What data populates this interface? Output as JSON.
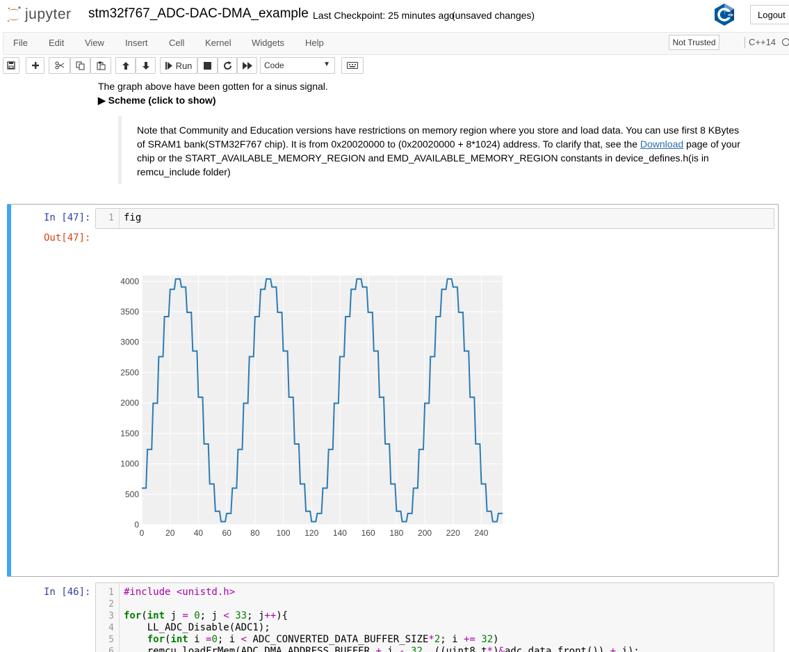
{
  "header": {
    "logo_text": "jupyter",
    "notebook_name": "stm32f767_ADC-DAC-DMA_example",
    "checkpoint": "Last Checkpoint: 25 minutes ago",
    "unsaved": "(unsaved changes)",
    "logout_label": "Logout",
    "trusted_label": "Not Trusted",
    "kernel_name": "C++14"
  },
  "menu": {
    "items": [
      {
        "label": "File"
      },
      {
        "label": "Edit"
      },
      {
        "label": "View"
      },
      {
        "label": "Insert"
      },
      {
        "label": "Cell"
      },
      {
        "label": "Kernel"
      },
      {
        "label": "Widgets"
      },
      {
        "label": "Help"
      }
    ]
  },
  "toolbar": {
    "run_label": "Run",
    "cell_type": "Code"
  },
  "markdown": {
    "line1": "The graph above have been gotten for a sinus signal.",
    "details_summary": "▶ Scheme (click to show)",
    "note_part1": "Note that Community and Education versions have restrictions on memory region where you store and load data. You can use first 8 KBytes of SRAM1 bank(STM32F767 chip). It is from 0x20020000 to (0x20020000 + 8*1024) address. To clarify that, see the ",
    "note_link": "Download",
    "note_part2": " page of your chip or the START_AVAILABLE_MEMORY_REGION and EMD_AVAILABLE_MEMORY_REGION constants in device_defines.h(is in remcu_include folder)"
  },
  "cell47": {
    "in_prompt": "In [47]:",
    "out_prompt": "Out[47]:",
    "line_number": "1",
    "code": "fig"
  },
  "cell46": {
    "in_prompt": "In [46]:",
    "line_numbers": [
      "1",
      "2",
      "3",
      "4",
      "5",
      "6"
    ]
  },
  "chart_data": {
    "type": "line",
    "title": "",
    "xlabel": "",
    "ylabel": "",
    "xlim": [
      0,
      255
    ],
    "ylim": [
      0,
      4095
    ],
    "x_ticks": [
      0,
      20,
      40,
      60,
      80,
      100,
      120,
      140,
      160,
      180,
      200,
      220,
      240
    ],
    "y_ticks": [
      0,
      500,
      1000,
      1500,
      2000,
      2500,
      3000,
      3500,
      4000
    ],
    "grid": true,
    "background": "#f0f0f0",
    "series_color": "#2b7bb3",
    "series": [
      {
        "name": "",
        "description": "quantized sine, period 64 samples, amplitude 0–4095, stepped every 4 samples",
        "x_start": 0,
        "x_end": 255,
        "period": 64,
        "min": 50,
        "max": 4040,
        "start_value": 600,
        "step": 4
      }
    ]
  }
}
